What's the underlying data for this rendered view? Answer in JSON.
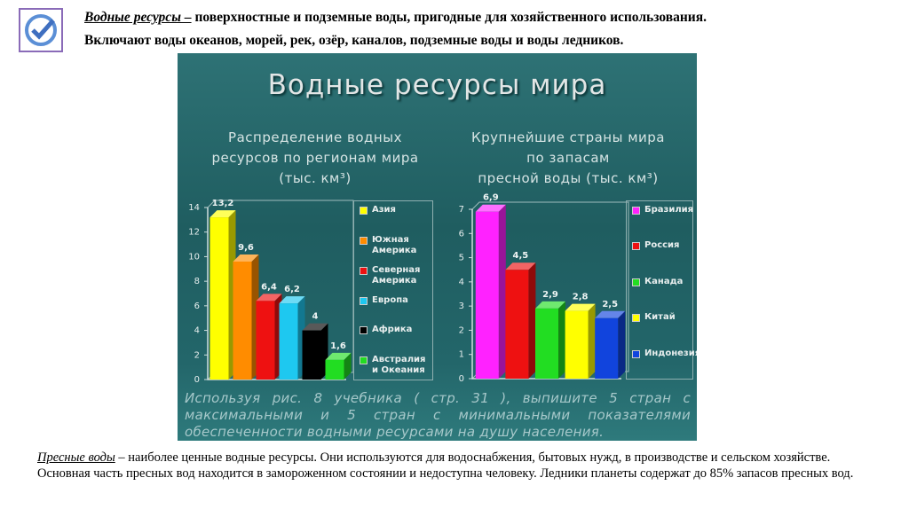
{
  "header": {
    "term": "Водные ресурсы –",
    "definition": "поверхностные и подземные воды, пригодные для хозяйственного использования.",
    "line2": "Включают воды океанов, морей, рек, озёр, каналов, подземные воды и воды ледников."
  },
  "panel": {
    "title": "Водные ресурсы мира",
    "task": "Используя рис. 8 учебника ( стр. 31 ), выпишите 5 стран с максимальными и 5 стран с минимальными показателями обеспеченности водными ресурсами на душу населения."
  },
  "chart_data": [
    {
      "type": "bar",
      "title_lines": [
        "Распределение водных",
        "ресурсов по регионам мира",
        "(тыс. км³)"
      ],
      "categories": [
        "Азия",
        "Южная Америка",
        "Северная Америка",
        "Европа",
        "Африка",
        "Австралия и Океания"
      ],
      "values": [
        13.2,
        9.6,
        6.4,
        6.2,
        4,
        1.6
      ],
      "value_labels": [
        "13,2",
        "9,6",
        "6,4",
        "6,2",
        "4",
        "1,6"
      ],
      "colors": [
        "#ffff00",
        "#ff8c00",
        "#ee1111",
        "#1ec8f0",
        "#000000",
        "#22dd22"
      ],
      "ylim": [
        0,
        14
      ],
      "yticks": [
        0,
        2,
        4,
        6,
        8,
        10,
        12,
        14
      ],
      "grid": false,
      "legend": "right"
    },
    {
      "type": "bar",
      "title_lines": [
        "Крупнейшие страны мира",
        "по запасам",
        "пресной воды (тыс. км³)"
      ],
      "categories": [
        "Бразилия",
        "Россия",
        "Канада",
        "Китай",
        "Индонезия"
      ],
      "values": [
        6.9,
        4.5,
        2.9,
        2.8,
        2.5
      ],
      "value_labels": [
        "6,9",
        "4,5",
        "2,9",
        "2,8",
        "2,5"
      ],
      "colors": [
        "#ff22ff",
        "#ee1111",
        "#22dd22",
        "#ffff00",
        "#1144dd"
      ],
      "ylim": [
        0,
        7
      ],
      "yticks": [
        0,
        1,
        2,
        3,
        4,
        5,
        6,
        7
      ],
      "grid": false,
      "legend": "right"
    }
  ],
  "footer": {
    "term": "Пресные воды",
    "text": "– наиболее ценные водные ресурсы. Они используются для водоснабжения, бытовых нужд, в производстве и сельском хозяйстве. Основная часть пресных вод находится в замороженном состоянии и недоступна человеку. Ледники планеты содержат до 85% запасов пресных вод."
  }
}
